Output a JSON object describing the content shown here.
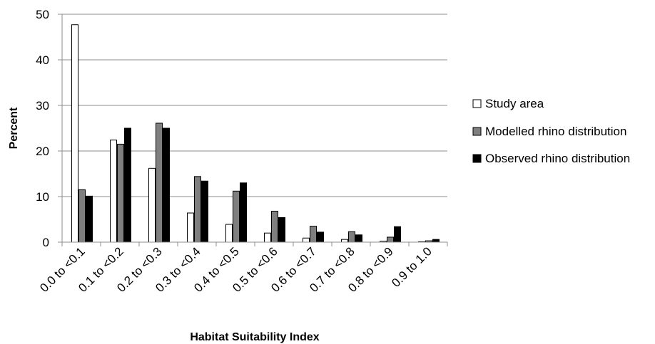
{
  "chart_data": {
    "type": "bar",
    "title": "",
    "xlabel": "Habitat Suitability Index",
    "ylabel": "Percent",
    "ylim": [
      0,
      50
    ],
    "yticks": [
      0,
      10,
      20,
      30,
      40,
      50
    ],
    "grid": true,
    "legend_position": "right",
    "categories": [
      "0.0 to <0.1",
      "0.1 to <0.2",
      "0.2 to <0.3",
      "0.3 to <0.4",
      "0.4 to <0.5",
      "0.5 to <0.6",
      "0.6 to <0.7",
      "0.7 to <0.8",
      "0.8 to <0.9",
      "0.9 to 1.0"
    ],
    "series": [
      {
        "name": "Study area",
        "color": "#ffffff",
        "values": [
          47.7,
          22.4,
          16.2,
          6.4,
          3.9,
          2.0,
          0.9,
          0.6,
          0.2,
          0.1
        ]
      },
      {
        "name": "Modelled rhino distribution",
        "color": "#7f7f7f",
        "values": [
          11.5,
          21.5,
          26.1,
          14.4,
          11.2,
          6.8,
          3.5,
          2.3,
          1.1,
          0.3
        ]
      },
      {
        "name": "Observed rhino distribution",
        "color": "#000000",
        "values": [
          10.1,
          25.0,
          25.0,
          13.4,
          13.0,
          5.4,
          2.2,
          1.6,
          3.4,
          0.6
        ]
      }
    ]
  }
}
